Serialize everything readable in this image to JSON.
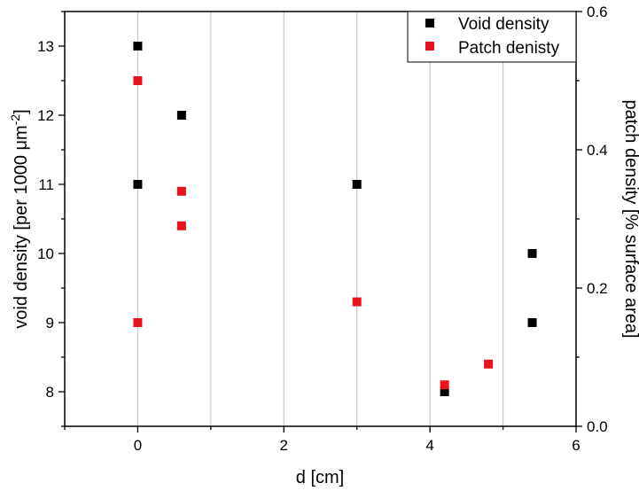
{
  "chart_data": {
    "type": "scatter",
    "xlabel": "d [cm]",
    "ylabel_left": {
      "text": "void density [per 1000 ",
      "mu": "μ",
      "unit": "m",
      "sup": "-2",
      "close": "]"
    },
    "ylabel_right": "patch density [% surface area]",
    "x_range": [
      -1,
      6
    ],
    "y_left_range": [
      7.5,
      13.5
    ],
    "y_right_range": [
      0.0,
      0.6
    ],
    "x_ticks": [
      0,
      2,
      4,
      6
    ],
    "y_left_ticks": [
      8,
      9,
      10,
      11,
      12,
      13
    ],
    "y_right_ticks": [
      0.0,
      0.2,
      0.4,
      0.6
    ],
    "y_right_tick_labels": [
      "0.0",
      "0.2",
      "0.4",
      "0.6"
    ],
    "grid": "vertical",
    "grid_x": [
      0,
      1,
      2,
      3,
      4,
      5
    ],
    "legend_position": "top-right",
    "series": [
      {
        "name": "Void density",
        "axis": "left",
        "color": "#000000",
        "points": [
          {
            "x": 0,
            "y": 13
          },
          {
            "x": 0,
            "y": 11
          },
          {
            "x": 0.6,
            "y": 12
          },
          {
            "x": 3,
            "y": 11
          },
          {
            "x": 4.2,
            "y": 8
          },
          {
            "x": 5.4,
            "y": 10
          },
          {
            "x": 5.4,
            "y": 9
          }
        ]
      },
      {
        "name": "Patch denisty",
        "axis": "right",
        "color": "#e8131b",
        "points": [
          {
            "x": 0,
            "y": 0.5
          },
          {
            "x": 0,
            "y": 0.15
          },
          {
            "x": 0.6,
            "y": 0.34
          },
          {
            "x": 0.6,
            "y": 0.29
          },
          {
            "x": 3,
            "y": 0.18
          },
          {
            "x": 4.2,
            "y": 0.06
          },
          {
            "x": 4.8,
            "y": 0.09
          }
        ]
      }
    ]
  }
}
